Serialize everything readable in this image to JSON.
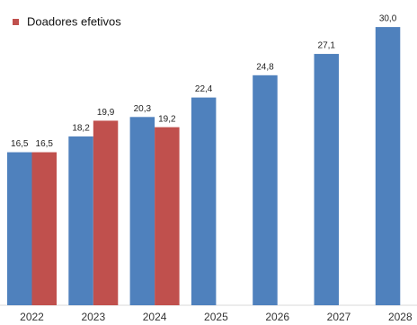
{
  "chart_data": {
    "type": "bar",
    "categories": [
      "2022",
      "2023",
      "2024",
      "2025",
      "2026",
      "2027",
      "2028"
    ],
    "series": [
      {
        "color": "#4f81bd",
        "values": [
          16.5,
          18.2,
          20.3,
          22.4,
          24.8,
          27.1,
          30.0
        ],
        "value_labels": [
          "16,5",
          "18,2",
          "20,3",
          "22,4",
          "24,8",
          "27,1",
          "30,0"
        ]
      },
      {
        "name": "Doadores efetivos",
        "color": "#c0504d",
        "values": [
          16.5,
          19.9,
          19.2,
          null,
          null,
          null,
          null
        ],
        "value_labels": [
          "16,5",
          "19,9",
          "19,2",
          null,
          null,
          null,
          null
        ]
      }
    ],
    "legend": "top-left"
  }
}
